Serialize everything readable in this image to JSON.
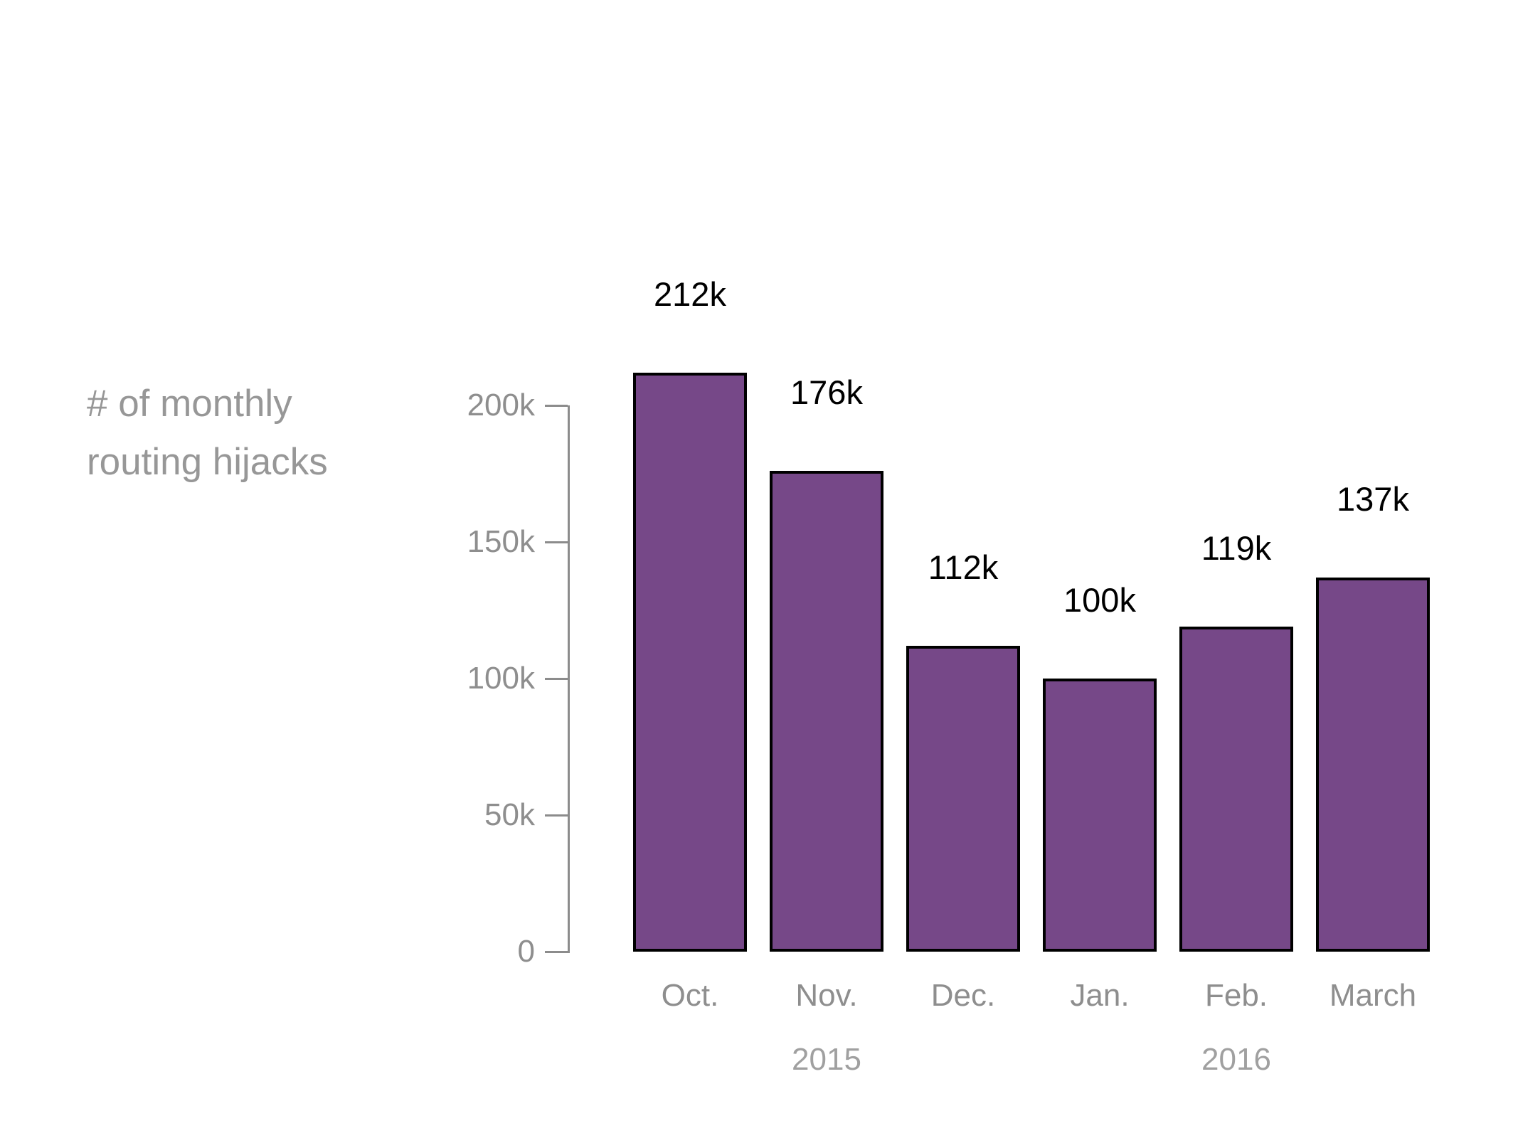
{
  "chart_data": {
    "type": "bar",
    "title_lines": [
      "# of monthly",
      "routing hijacks"
    ],
    "categories": [
      "Oct.",
      "Nov.",
      "Dec.",
      "Jan.",
      "Feb.",
      "March"
    ],
    "values_k": [
      212,
      176,
      112,
      100,
      119,
      137
    ],
    "value_labels": [
      "212k",
      "176k",
      "112k",
      "100k",
      "119k",
      "137k"
    ],
    "y_axis": {
      "tick_labels": [
        "0",
        "50k",
        "100k",
        "150k",
        "200k"
      ],
      "ticks_k": [
        0,
        50,
        100,
        150,
        200
      ],
      "max_k": 200
    },
    "year_labels": [
      {
        "text": "2015",
        "month_index": 1
      },
      {
        "text": "2016",
        "month_index": 4
      }
    ],
    "legend": "none",
    "grid": "off",
    "colors": {
      "background": "#ffffff",
      "bar_fill": "#764888",
      "bar_border": "#000000",
      "axis": "#8c8c8c",
      "tick_text": "#8e8e8e",
      "month_text": "#8e8e8e",
      "year_text": "#a0a0a0",
      "title_text": "#979797",
      "value_text": "#000000"
    }
  }
}
